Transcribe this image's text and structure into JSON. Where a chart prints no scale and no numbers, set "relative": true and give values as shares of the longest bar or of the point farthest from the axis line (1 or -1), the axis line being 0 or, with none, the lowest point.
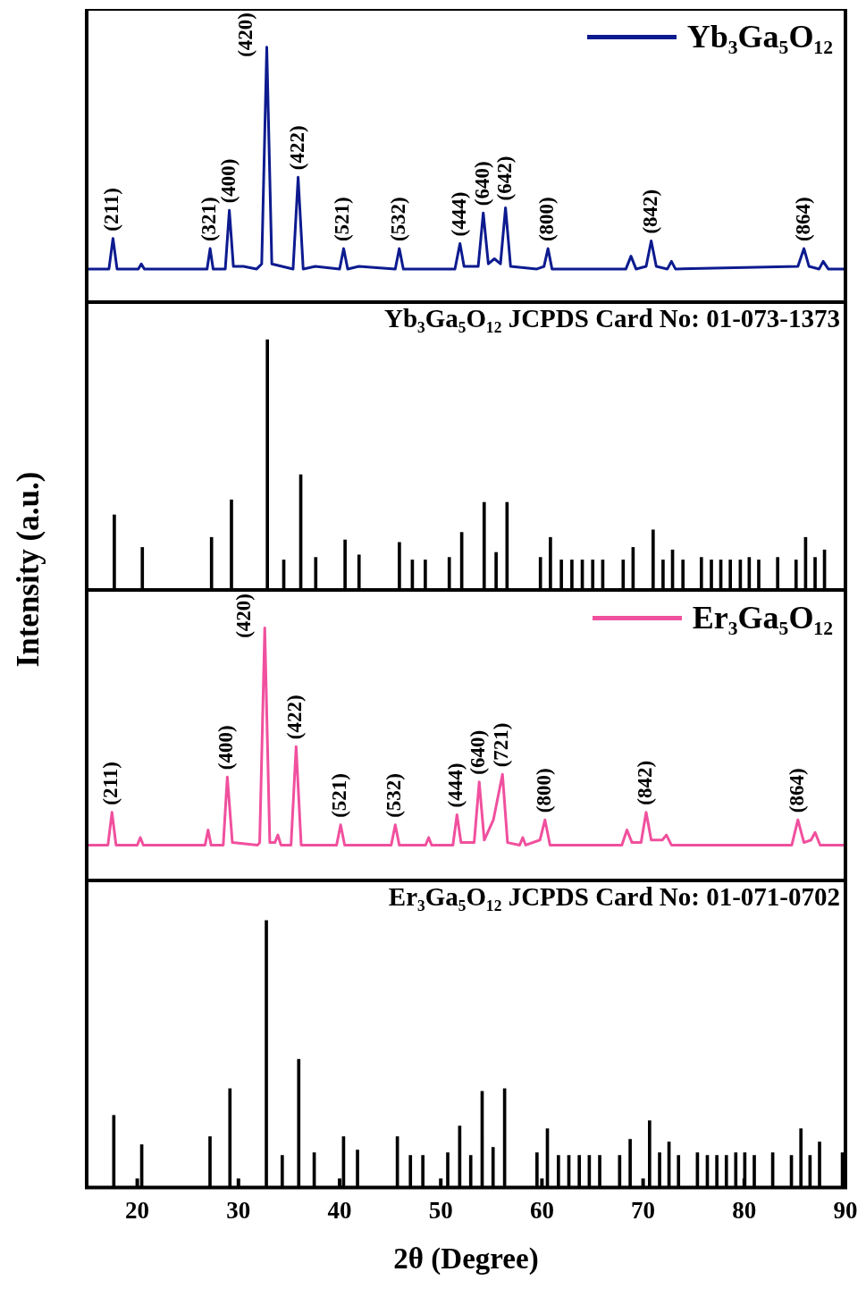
{
  "chart_data": [
    {
      "type": "line",
      "relative": true,
      "xlim": [
        15,
        90
      ],
      "tick_labels": false,
      "legend": "top right",
      "ylabel": "Intensity (a.u.)",
      "x": [
        15,
        17.2,
        17.6,
        18.0,
        20.1,
        20.4,
        20.7,
        26.9,
        27.2,
        27.5,
        28.7,
        29.1,
        29.5,
        30.5,
        31.8,
        32.3,
        32.8,
        33.3,
        34.3,
        35.4,
        35.9,
        36.4,
        37.6,
        40.0,
        40.4,
        40.8,
        41.9,
        45.5,
        45.9,
        46.3,
        51.4,
        51.9,
        52.3,
        53.7,
        54.2,
        54.7,
        55.3,
        55.9,
        56.4,
        56.9,
        59.5,
        60.2,
        60.6,
        61.0,
        68.3,
        68.8,
        69.3,
        70.3,
        70.8,
        71.3,
        72.4,
        72.8,
        73.2,
        85.3,
        85.9,
        86.4,
        87.4,
        87.8,
        88.3,
        90
      ],
      "series": [
        {
          "name": "Yb₃Ga₅O₁₂",
          "color": "#0d1b8f",
          "values": [
            0.13,
            0.13,
            0.25,
            0.13,
            0.13,
            0.15,
            0.13,
            0.13,
            0.21,
            0.13,
            0.13,
            0.36,
            0.14,
            0.14,
            0.13,
            0.15,
            1,
            0.15,
            0.14,
            0.13,
            0.49,
            0.13,
            0.14,
            0.13,
            0.21,
            0.13,
            0.14,
            0.13,
            0.21,
            0.13,
            0.13,
            0.23,
            0.14,
            0.14,
            0.35,
            0.15,
            0.17,
            0.15,
            0.37,
            0.14,
            0.13,
            0.14,
            0.21,
            0.13,
            0.13,
            0.18,
            0.13,
            0.14,
            0.24,
            0.14,
            0.13,
            0.16,
            0.13,
            0.14,
            0.21,
            0.14,
            0.13,
            0.16,
            0.13,
            0.13
          ]
        }
      ],
      "annotations": [
        {
          "text": "(211)",
          "x": 17.6,
          "y": 0.25
        },
        {
          "text": "(321)",
          "x": 27.2,
          "y": 0.21
        },
        {
          "text": "(400)",
          "x": 29.1,
          "y": 0.36
        },
        {
          "text": "(420)",
          "x": 32.8,
          "y": 1
        },
        {
          "text": "(422)",
          "x": 35.9,
          "y": 0.49
        },
        {
          "text": "(521)",
          "x": 40.4,
          "y": 0.21
        },
        {
          "text": "(532)",
          "x": 45.9,
          "y": 0.21
        },
        {
          "text": "(444)",
          "x": 51.9,
          "y": 0.23
        },
        {
          "text": "(640)",
          "x": 54.2,
          "y": 0.35
        },
        {
          "text": "(642)",
          "x": 56.4,
          "y": 0.37
        },
        {
          "text": "(800)",
          "x": 60.6,
          "y": 0.21
        },
        {
          "text": "(842)",
          "x": 70.8,
          "y": 0.24
        },
        {
          "text": "(864)",
          "x": 85.9,
          "y": 0.21
        }
      ]
    },
    {
      "type": "bar",
      "relative": true,
      "xlim": [
        15,
        90
      ],
      "tick_labels": false,
      "title": "Yb₃Ga₅O₁₂ JCPDS Card No: 01-073-1373",
      "color": "#000000",
      "x": [
        17.73,
        20.5,
        27.34,
        29.31,
        32.86,
        34.48,
        36.16,
        37.64,
        40.54,
        41.92,
        45.91,
        47.19,
        48.47,
        50.84,
        52.07,
        54.29,
        55.47,
        56.55,
        59.85,
        60.84,
        61.92,
        62.96,
        63.99,
        65.02,
        66.01,
        68.03,
        69.01,
        70.99,
        71.97,
        72.91,
        73.94,
        75.76,
        76.75,
        77.68,
        78.62,
        79.61,
        80.49,
        81.43,
        83.3,
        85.12,
        86.06,
        87.0,
        87.93
      ],
      "values": [
        0.3,
        0.17,
        0.21,
        0.36,
        1,
        0.12,
        0.46,
        0.13,
        0.2,
        0.14,
        0.19,
        0.12,
        0.12,
        0.13,
        0.23,
        0.35,
        0.15,
        0.35,
        0.13,
        0.21,
        0.12,
        0.12,
        0.12,
        0.12,
        0.12,
        0.12,
        0.17,
        0.24,
        0.12,
        0.16,
        0.12,
        0.13,
        0.12,
        0.12,
        0.12,
        0.12,
        0.13,
        0.12,
        0.13,
        0.12,
        0.21,
        0.13,
        0.16
      ]
    },
    {
      "type": "line",
      "relative": true,
      "xlim": [
        15,
        90
      ],
      "tick_labels": false,
      "legend": "top right",
      "x": [
        15,
        17.1,
        17.5,
        17.9,
        20.0,
        20.3,
        20.6,
        26.7,
        27.0,
        27.3,
        28.5,
        28.9,
        29.4,
        31.9,
        32.1,
        32.6,
        33.1,
        33.6,
        33.9,
        34.2,
        35.2,
        35.7,
        36.2,
        39.7,
        40.1,
        40.5,
        45.1,
        45.5,
        45.9,
        48.5,
        48.8,
        49.1,
        51.2,
        51.6,
        52.0,
        53.3,
        53.8,
        54.3,
        55.2,
        56.1,
        56.6,
        57.8,
        58.1,
        58.4,
        59.8,
        60.3,
        60.8,
        67.9,
        68.4,
        68.9,
        69.8,
        70.3,
        70.8,
        71.9,
        72.3,
        72.8,
        84.7,
        85.3,
        85.9,
        86.6,
        87.0,
        87.5,
        90
      ],
      "series": [
        {
          "name": "Er₃Ga₅O₁₂",
          "color": "#f0509e",
          "values": [
            0.14,
            0.14,
            0.27,
            0.14,
            0.14,
            0.17,
            0.14,
            0.14,
            0.2,
            0.14,
            0.14,
            0.41,
            0.15,
            0.14,
            0.15,
            1,
            0.15,
            0.15,
            0.18,
            0.14,
            0.14,
            0.53,
            0.14,
            0.14,
            0.22,
            0.14,
            0.14,
            0.22,
            0.14,
            0.14,
            0.17,
            0.14,
            0.14,
            0.26,
            0.15,
            0.15,
            0.39,
            0.16,
            0.24,
            0.42,
            0.15,
            0.14,
            0.17,
            0.14,
            0.16,
            0.24,
            0.14,
            0.14,
            0.2,
            0.15,
            0.15,
            0.27,
            0.16,
            0.16,
            0.18,
            0.14,
            0.14,
            0.24,
            0.15,
            0.16,
            0.19,
            0.14,
            0.14
          ]
        }
      ],
      "annotations": [
        {
          "text": "(211)",
          "x": 17.5,
          "y": 0.27
        },
        {
          "text": "(400)",
          "x": 28.9,
          "y": 0.41
        },
        {
          "text": "(420)",
          "x": 32.6,
          "y": 1
        },
        {
          "text": "(422)",
          "x": 35.7,
          "y": 0.53
        },
        {
          "text": "(521)",
          "x": 40.1,
          "y": 0.22
        },
        {
          "text": "(532)",
          "x": 45.5,
          "y": 0.22
        },
        {
          "text": "(444)",
          "x": 51.6,
          "y": 0.26
        },
        {
          "text": "(640)",
          "x": 53.8,
          "y": 0.39
        },
        {
          "text": "(721)",
          "x": 56.1,
          "y": 0.42
        },
        {
          "text": "(800)",
          "x": 60.3,
          "y": 0.24
        },
        {
          "text": "(842)",
          "x": 70.3,
          "y": 0.27
        },
        {
          "text": "(864)",
          "x": 85.3,
          "y": 0.24
        }
      ]
    },
    {
      "type": "bar",
      "relative": true,
      "xlim": [
        15,
        90
      ],
      "xticks": [
        20,
        30,
        40,
        50,
        60,
        70,
        80,
        90
      ],
      "tick_labels": "x",
      "title": "Er₃Ga₅O₁₂ JCPDS Card No: 01-071-0702",
      "xlabel": "2θ (Degree)",
      "color": "#000000",
      "x": [
        17.68,
        20.44,
        27.19,
        29.16,
        32.76,
        34.33,
        35.96,
        37.49,
        40.39,
        41.77,
        45.71,
        47.0,
        48.23,
        50.69,
        51.87,
        52.96,
        54.09,
        55.17,
        56.31,
        59.51,
        60.54,
        61.63,
        62.66,
        63.69,
        64.68,
        65.71,
        67.68,
        68.72,
        70.64,
        71.63,
        72.56,
        73.5,
        75.37,
        76.35,
        77.29,
        78.23,
        79.16,
        80.05,
        80.99,
        82.81,
        84.66,
        85.6,
        86.5,
        87.44,
        89.7
      ],
      "values": [
        0.27,
        0.16,
        0.19,
        0.37,
        1,
        0.12,
        0.48,
        0.13,
        0.19,
        0.14,
        0.19,
        0.12,
        0.12,
        0.13,
        0.23,
        0.12,
        0.36,
        0.15,
        0.37,
        0.13,
        0.22,
        0.12,
        0.12,
        0.12,
        0.12,
        0.12,
        0.12,
        0.18,
        0.25,
        0.13,
        0.17,
        0.12,
        0.13,
        0.12,
        0.12,
        0.12,
        0.13,
        0.13,
        0.12,
        0.13,
        0.12,
        0.22,
        0.12,
        0.17,
        0.13
      ]
    }
  ]
}
